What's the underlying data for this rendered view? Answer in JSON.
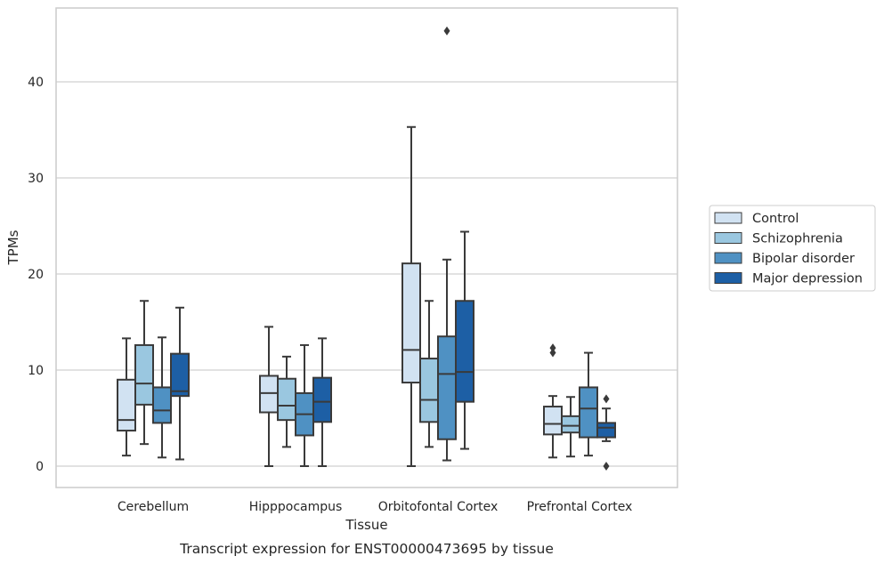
{
  "caption": "Transcript expression for ENST00000473695 by tissue",
  "chart_data": {
    "type": "box",
    "xlabel": "Tissue",
    "ylabel": "TPMs",
    "ylim": [
      -2.1,
      47.5
    ],
    "yticks": [
      0,
      10,
      20,
      30,
      40
    ],
    "grid": "horizontal",
    "legend_position": "right",
    "categories": [
      "Cerebellum",
      "Hipppocampus",
      "Orbitofontal Cortex",
      "Prefrontal Cortex"
    ],
    "series": [
      {
        "name": "Control",
        "color": "#d1e2f2",
        "boxes": [
          {
            "whislo": 1.1,
            "q1": 3.7,
            "med": 4.8,
            "q3": 9.0,
            "whishi": 13.3,
            "fliers": []
          },
          {
            "whislo": 0.0,
            "q1": 5.6,
            "med": 7.6,
            "q3": 9.4,
            "whishi": 14.5,
            "fliers": []
          },
          {
            "whislo": 0.0,
            "q1": 8.7,
            "med": 12.1,
            "q3": 21.1,
            "whishi": 35.3,
            "fliers": []
          },
          {
            "whislo": 0.9,
            "q1": 3.3,
            "med": 4.4,
            "q3": 6.2,
            "whishi": 7.3,
            "fliers": [
              11.8,
              12.3
            ]
          }
        ]
      },
      {
        "name": "Schizophrenia",
        "color": "#9ac7e0",
        "boxes": [
          {
            "whislo": 2.3,
            "q1": 6.4,
            "med": 8.6,
            "q3": 12.6,
            "whishi": 17.2,
            "fliers": []
          },
          {
            "whislo": 2.0,
            "q1": 4.8,
            "med": 6.3,
            "q3": 9.1,
            "whishi": 11.4,
            "fliers": []
          },
          {
            "whislo": 2.0,
            "q1": 4.6,
            "med": 6.9,
            "q3": 11.2,
            "whishi": 17.2,
            "fliers": []
          },
          {
            "whislo": 1.0,
            "q1": 3.5,
            "med": 4.2,
            "q3": 5.2,
            "whishi": 7.2,
            "fliers": []
          }
        ]
      },
      {
        "name": "Bipolar disorder",
        "color": "#4f91c3",
        "boxes": [
          {
            "whislo": 0.9,
            "q1": 4.5,
            "med": 5.8,
            "q3": 8.2,
            "whishi": 13.4,
            "fliers": []
          },
          {
            "whislo": 0.0,
            "q1": 3.2,
            "med": 5.4,
            "q3": 7.6,
            "whishi": 12.6,
            "fliers": []
          },
          {
            "whislo": 0.6,
            "q1": 2.8,
            "med": 9.6,
            "q3": 13.5,
            "whishi": 21.5,
            "fliers": [
              45.3
            ]
          },
          {
            "whislo": 1.1,
            "q1": 3.0,
            "med": 6.0,
            "q3": 8.2,
            "whishi": 11.8,
            "fliers": []
          }
        ]
      },
      {
        "name": "Major depression",
        "color": "#1d5fa5",
        "boxes": [
          {
            "whislo": 0.7,
            "q1": 7.3,
            "med": 7.8,
            "q3": 11.7,
            "whishi": 16.5,
            "fliers": []
          },
          {
            "whislo": 0.0,
            "q1": 4.6,
            "med": 6.7,
            "q3": 9.2,
            "whishi": 13.3,
            "fliers": []
          },
          {
            "whislo": 1.8,
            "q1": 6.7,
            "med": 9.8,
            "q3": 17.2,
            "whishi": 24.4,
            "fliers": []
          },
          {
            "whislo": 2.6,
            "q1": 3.0,
            "med": 4.0,
            "q3": 4.5,
            "whishi": 6.0,
            "fliers": [
              7.0,
              0.0
            ]
          }
        ]
      }
    ]
  }
}
